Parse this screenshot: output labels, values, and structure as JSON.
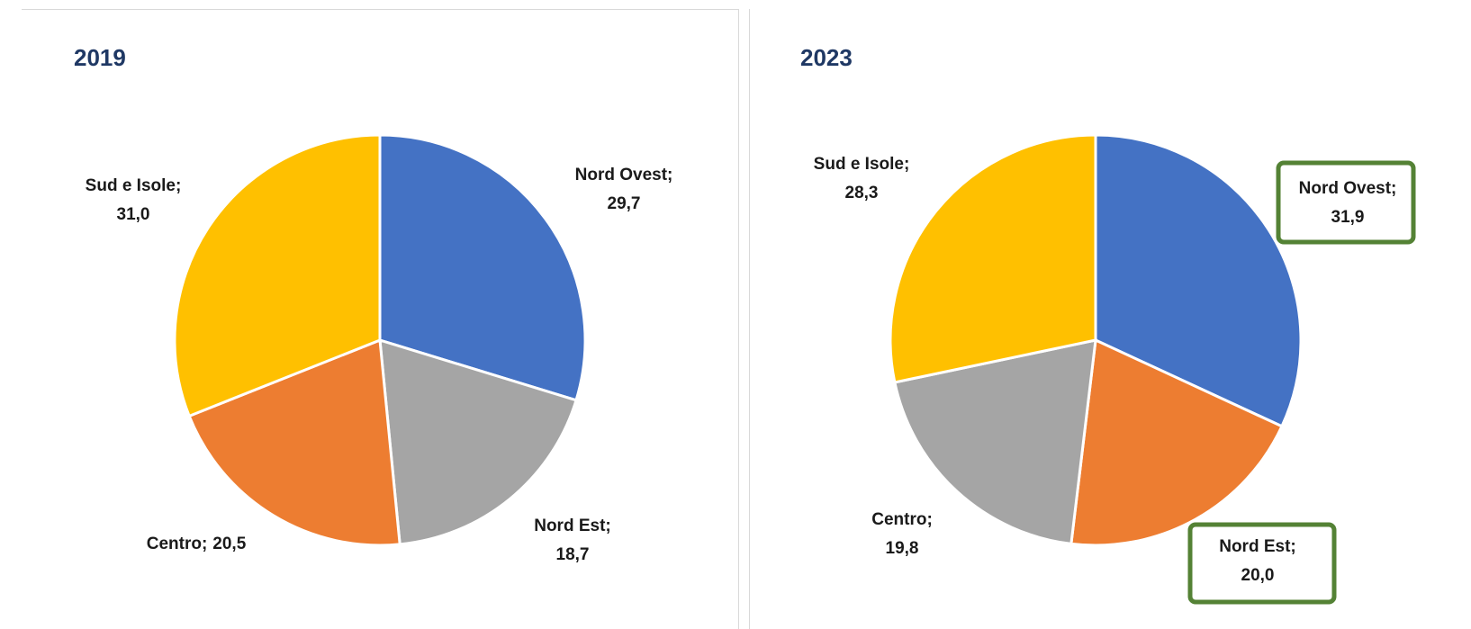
{
  "chart_data": [
    {
      "type": "pie",
      "title": "2019",
      "categories": [
        "Nord Ovest",
        "Nord Est",
        "Centro",
        "Sud e Isole"
      ],
      "values": [
        29.7,
        18.7,
        20.5,
        31.0
      ],
      "value_labels": [
        "29,7",
        "18,7",
        "20,5",
        "31,0"
      ],
      "label_separator": ";",
      "colors": [
        "#4472c4",
        "#a5a5a5",
        "#ed7d31",
        "#ffc000"
      ],
      "highlight": [
        false,
        false,
        false,
        false
      ]
    },
    {
      "type": "pie",
      "title": "2023",
      "categories": [
        "Nord Ovest",
        "Nord Est",
        "Centro",
        "Sud e Isole"
      ],
      "values": [
        31.9,
        20.0,
        19.8,
        28.3
      ],
      "value_labels": [
        "31,9",
        "20,0",
        "19,8",
        "28,3"
      ],
      "label_separator": ";",
      "colors": [
        "#4472c4",
        "#ed7d31",
        "#a5a5a5",
        "#ffc000"
      ],
      "highlight": [
        true,
        true,
        false,
        false
      ]
    }
  ]
}
